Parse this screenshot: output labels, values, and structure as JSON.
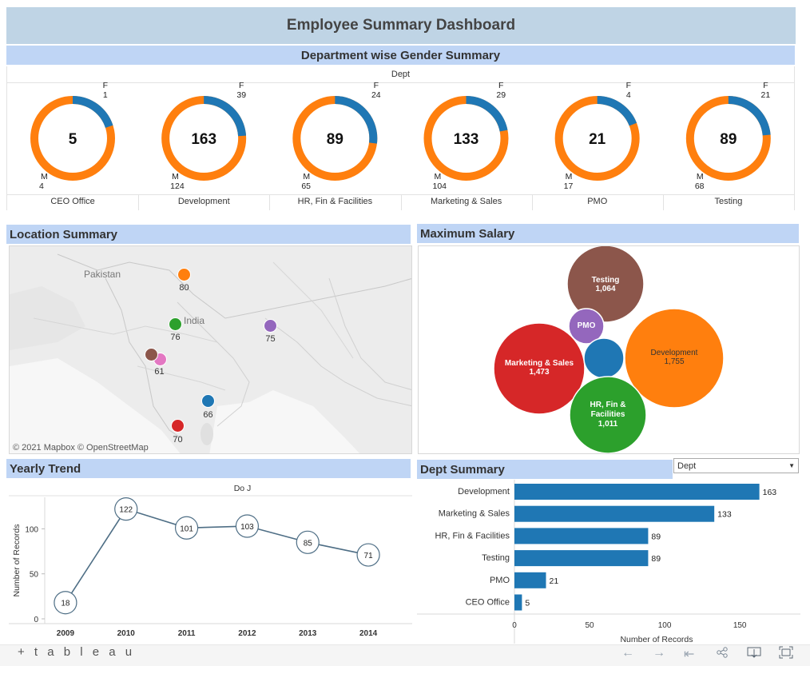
{
  "header": {
    "title": "Employee Summary Dashboard"
  },
  "gender_section": {
    "title": "Department wise Gender Summary",
    "column_header": "Dept"
  },
  "donuts": [
    {
      "dept": "CEO Office",
      "total": "5",
      "f_label": "F",
      "f_value": "1",
      "m_label": "M",
      "m_value": "4",
      "f": 1,
      "m": 4
    },
    {
      "dept": "Development",
      "total": "163",
      "f_label": "F",
      "f_value": "39",
      "m_label": "M",
      "m_value": "124",
      "f": 39,
      "m": 124
    },
    {
      "dept": "HR, Fin & Facilities",
      "total": "89",
      "f_label": "F",
      "f_value": "24",
      "m_label": "M",
      "m_value": "65",
      "f": 24,
      "m": 65
    },
    {
      "dept": "Marketing & Sales",
      "total": "133",
      "f_label": "F",
      "f_value": "29",
      "m_label": "M",
      "m_value": "104",
      "f": 29,
      "m": 104
    },
    {
      "dept": "PMO",
      "total": "21",
      "f_label": "F",
      "f_value": "4",
      "m_label": "M",
      "m_value": "17",
      "f": 4,
      "m": 17
    },
    {
      "dept": "Testing",
      "total": "89",
      "f_label": "F",
      "f_value": "21",
      "m_label": "M",
      "m_value": "68",
      "f": 21,
      "m": 68
    }
  ],
  "colors": {
    "female": "#1f77b4",
    "male": "#ff7f0e",
    "section_bar": "#bfd5f5",
    "title_bar": "#bfd4e5",
    "bar": "#1f77b4",
    "line": "#4e6e85"
  },
  "location": {
    "title": "Location Summary",
    "map_labels": {
      "country1": "Pakistan",
      "country2": "India"
    },
    "attribution": "© 2021 Mapbox  © OpenStreetMap",
    "markers": [
      {
        "label": "80",
        "color": "#ff7f0e"
      },
      {
        "label": "76",
        "color": "#2ca02c"
      },
      {
        "label": "75",
        "color": "#9467bd"
      },
      {
        "label": "61",
        "color": "#8c564b",
        "color2": "#e377c2"
      },
      {
        "label": "66",
        "color": "#1f77b4"
      },
      {
        "label": "70",
        "color": "#d62728"
      }
    ]
  },
  "salary": {
    "title": "Maximum Salary",
    "bubbles": [
      {
        "name": "Testing",
        "value": "1,064",
        "color": "#8c564b"
      },
      {
        "name": "PMO",
        "value": "",
        "color": "#9467bd"
      },
      {
        "name": "Development",
        "value": "1,755",
        "color": "#ff7f0e"
      },
      {
        "name": "Marketing & Sales",
        "value": "1,473",
        "color": "#d62728"
      },
      {
        "name": "",
        "value": "",
        "color": "#1f77b4"
      },
      {
        "name": "HR, Fin & Facilities",
        "value": "1,011",
        "color": "#2ca02c"
      }
    ]
  },
  "dept_summary": {
    "title": "Dept Summary",
    "filter": {
      "value": "Dept",
      "arrow": "▼"
    }
  },
  "yearly": {
    "title": "Yearly Trend"
  },
  "chart_data": [
    {
      "type": "line",
      "title": "Yearly Trend",
      "column_header": "Do J",
      "x": [
        "2009",
        "2010",
        "2011",
        "2012",
        "2013",
        "2014"
      ],
      "y": [
        18,
        122,
        101,
        103,
        85,
        71
      ],
      "ylabel": "Number of Records",
      "yticks": [
        0,
        50,
        100
      ],
      "ylim": [
        0,
        135
      ]
    },
    {
      "type": "bar",
      "title": "Dept Summary",
      "orientation": "horizontal",
      "categories": [
        "Development",
        "Marketing & Sales",
        "HR, Fin & Facilities",
        "Testing",
        "PMO",
        "CEO Office"
      ],
      "values": [
        163,
        133,
        89,
        89,
        21,
        5
      ],
      "xlabel": "Number of Records",
      "xticks": [
        0,
        50,
        100,
        150
      ],
      "xlim": [
        0,
        185
      ]
    }
  ],
  "footer": {
    "logo": "+ t a b l e a u",
    "icons": [
      "undo-icon",
      "redo-icon",
      "revert-icon",
      "share-icon",
      "download-icon",
      "fullscreen-icon"
    ]
  }
}
